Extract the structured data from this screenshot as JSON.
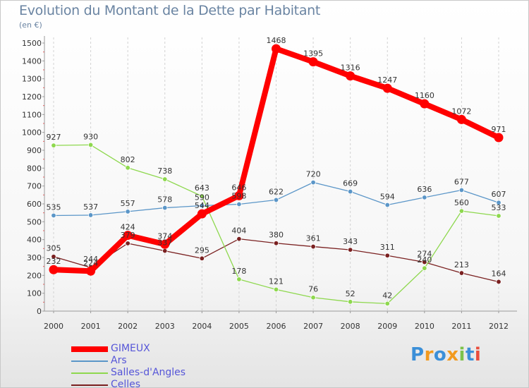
{
  "title": "Evolution du Montant de la Dette par Habitant",
  "subtitle": "(en €)",
  "logo": {
    "text": "Proxiti",
    "letters": [
      {
        "ch": "P",
        "color": "#3b8fd8"
      },
      {
        "ch": "r",
        "color": "#f29a1e"
      },
      {
        "ch": "o",
        "color": "#3b8fd8"
      },
      {
        "ch": "x",
        "color": "#f29a1e"
      },
      {
        "ch": "i",
        "color": "#7cc24a"
      },
      {
        "ch": "t",
        "color": "#3b8fd8"
      },
      {
        "ch": "i",
        "color": "#e94d3c"
      }
    ]
  },
  "chart_data": {
    "type": "line",
    "title": "Evolution du Montant de la Dette par Habitant",
    "subtitle": "(en €)",
    "xlabel": "",
    "ylabel": "",
    "ylim": [
      0,
      1500
    ],
    "yticks": [
      0,
      100,
      200,
      300,
      400,
      500,
      600,
      700,
      800,
      900,
      1000,
      1100,
      1200,
      1300,
      1400,
      1500
    ],
    "x": [
      "2000",
      "2001",
      "2002",
      "2003",
      "2004",
      "2005",
      "2006",
      "2007",
      "2008",
      "2009",
      "2010",
      "2011",
      "2012"
    ],
    "grid": "vertical dashed",
    "legend": "bottom-left",
    "series": [
      {
        "name": "GIMEUX",
        "color": "#ff0000",
        "values": [
          232,
          224,
          424,
          374,
          544,
          646,
          1468,
          1395,
          1316,
          1247,
          1160,
          1072,
          971
        ],
        "labels": [
          "232",
          "224",
          "424",
          "374",
          "544",
          "646",
          "1468",
          "1395",
          "1316",
          "1247",
          "1160",
          "1072",
          "971"
        ]
      },
      {
        "name": "Ars",
        "color": "#5b96c8",
        "values": [
          535,
          537,
          557,
          578,
          590,
          598,
          622,
          720,
          669,
          594,
          636,
          677,
          607
        ],
        "labels": [
          "535",
          "537",
          "557",
          "578",
          "590",
          "598",
          "622",
          "720",
          "669",
          "594",
          "636",
          "677",
          "607"
        ]
      },
      {
        "name": "Salles-d'Angles",
        "color": "#8ed84e",
        "values": [
          927,
          930,
          802,
          738,
          643,
          178,
          121,
          76,
          52,
          42,
          240,
          560,
          533
        ],
        "labels": [
          "927",
          "930",
          "802",
          "738",
          "643",
          "178",
          "121",
          "76",
          "52",
          "42",
          "240",
          "560",
          "533"
        ]
      },
      {
        "name": "Celles",
        "color": "#7a2020",
        "values": [
          305,
          244,
          379,
          337,
          295,
          404,
          380,
          361,
          343,
          311,
          274,
          213,
          164
        ],
        "labels": [
          "305",
          "244",
          "379",
          "337",
          "295",
          "404",
          "380",
          "361",
          "343",
          "311",
          "274",
          "213",
          "164"
        ]
      }
    ]
  }
}
